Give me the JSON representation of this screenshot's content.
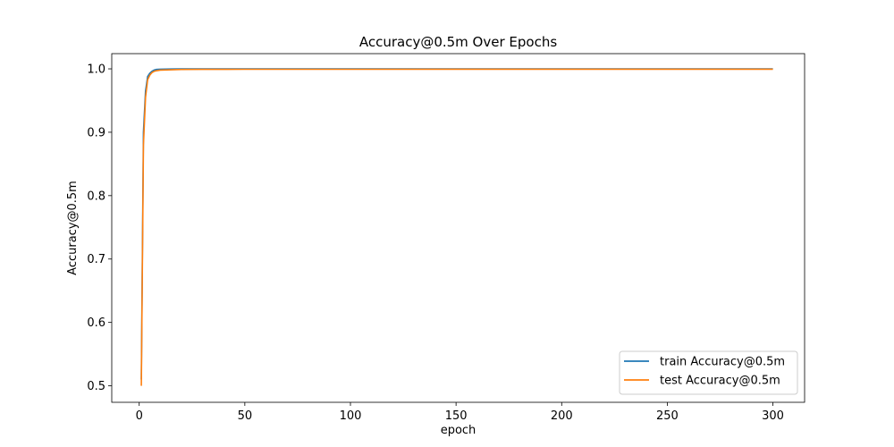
{
  "chart_data": {
    "type": "line",
    "title": "Accuracy@0.5m Over Epochs",
    "xlabel": "epoch",
    "ylabel": "Accuracy@0.5m",
    "xlim": [
      -13,
      315
    ],
    "ylim": [
      0.474,
      1.024
    ],
    "xticks": [
      0,
      50,
      100,
      150,
      200,
      250,
      300
    ],
    "yticks": [
      0.5,
      0.6,
      0.7,
      0.8,
      0.9,
      1.0
    ],
    "xtick_labels": [
      "0",
      "50",
      "100",
      "150",
      "200",
      "250",
      "300"
    ],
    "ytick_labels": [
      "0.5",
      "0.6",
      "0.7",
      "0.8",
      "0.9",
      "1.0"
    ],
    "grid": false,
    "legend_position": "lower-right",
    "series": [
      {
        "name": "train Accuracy@0.5m",
        "color": "#1f77b4",
        "x": [
          1,
          2,
          3,
          4,
          5,
          6,
          7,
          8,
          10,
          15,
          20,
          30,
          50,
          100,
          150,
          200,
          250,
          300
        ],
        "y": [
          0.51,
          0.9,
          0.965,
          0.988,
          0.993,
          0.996,
          0.998,
          0.999,
          0.9995,
          0.9998,
          0.9999,
          1.0,
          1.0,
          1.0,
          1.0,
          1.0,
          1.0,
          1.0
        ]
      },
      {
        "name": "test Accuracy@0.5m",
        "color": "#ff7f0e",
        "x": [
          1,
          2,
          3,
          4,
          5,
          6,
          7,
          8,
          10,
          15,
          20,
          30,
          50,
          100,
          150,
          200,
          250,
          300
        ],
        "y": [
          0.5,
          0.88,
          0.955,
          0.983,
          0.99,
          0.994,
          0.996,
          0.997,
          0.998,
          0.9985,
          0.999,
          0.9992,
          0.9993,
          0.9993,
          0.9994,
          0.9994,
          0.9994,
          0.9994
        ]
      }
    ]
  }
}
